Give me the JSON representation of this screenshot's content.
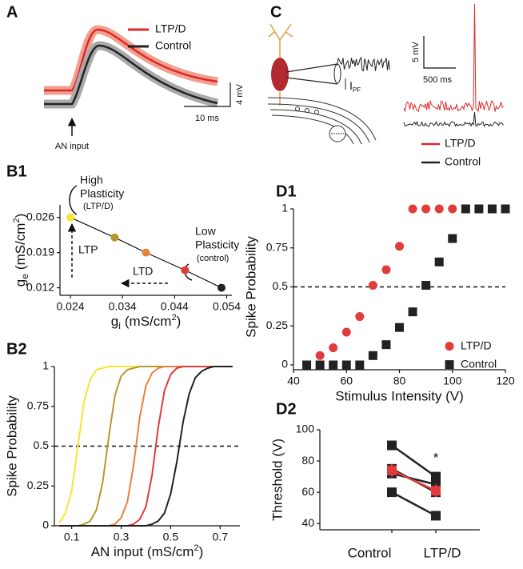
{
  "panel_a": {
    "label": "A",
    "legend": [
      "LTP/D",
      "Control"
    ],
    "scale_y": "4 mV",
    "scale_x": "10 ms",
    "marker": "AN input"
  },
  "panel_c": {
    "label": "C",
    "current_symbol": "I",
    "current_subscript": "PF",
    "scale_y": "5 mV",
    "scale_x": "500 ms",
    "legend": [
      "LTP/D",
      "Control"
    ]
  },
  "chart_data": [
    {
      "panel": "B1",
      "type": "scatter",
      "x": [
        0.024,
        0.0325,
        0.0385,
        0.046,
        0.053
      ],
      "y": [
        0.026,
        0.022,
        0.019,
        0.0155,
        0.012
      ],
      "colors": [
        "#f2e830",
        "#b8962e",
        "#e8823a",
        "#e23b3b",
        "#222222"
      ],
      "connect": true,
      "xlim": [
        0.022,
        0.055
      ],
      "ylim": [
        0.0105,
        0.0285
      ],
      "xticks": [
        0.024,
        0.034,
        0.044,
        0.054
      ],
      "yticks": [
        0.012,
        0.019,
        0.026
      ],
      "xlabel": {
        "symbol": "g",
        "subscript": "i",
        "unit": "(mS/cm",
        "superscript": "2",
        "close": ")"
      },
      "ylabel": {
        "symbol": "g",
        "subscript": "e",
        "unit": "(mS/cm",
        "superscript": "2",
        "close": ")"
      },
      "annotations": {
        "high": [
          "High",
          "Plasticity",
          "(LTP/D)"
        ],
        "low": [
          "Low",
          "Plasticity",
          "(control)"
        ],
        "ltp": "LTP",
        "ltd": "LTD"
      }
    },
    {
      "panel": "B2",
      "type": "line",
      "x": [
        0.05,
        0.075,
        0.1,
        0.125,
        0.15,
        0.175,
        0.2,
        0.225,
        0.25,
        0.275,
        0.3,
        0.325,
        0.35,
        0.375,
        0.4,
        0.425,
        0.45,
        0.475,
        0.5,
        0.525,
        0.55,
        0.575,
        0.6,
        0.625,
        0.65,
        0.675,
        0.7,
        0.725,
        0.75
      ],
      "series": [
        {
          "color": "#f2e830",
          "values": [
            0.02,
            0.08,
            0.22,
            0.5,
            0.78,
            0.92,
            0.98,
            0.99,
            1,
            1,
            1,
            1,
            1,
            1,
            1,
            1,
            1,
            1,
            1,
            1,
            1,
            1,
            1,
            1,
            1,
            1,
            1,
            1,
            1
          ]
        },
        {
          "color": "#b8962e",
          "values": [
            0,
            0,
            0,
            0,
            0.01,
            0.03,
            0.1,
            0.27,
            0.56,
            0.82,
            0.94,
            0.98,
            0.99,
            1,
            1,
            1,
            1,
            1,
            1,
            1,
            1,
            1,
            1,
            1,
            1,
            1,
            1,
            1,
            1
          ]
        },
        {
          "color": "#e8823a",
          "values": [
            0,
            0,
            0,
            0,
            0,
            0,
            0,
            0,
            0,
            0.01,
            0.05,
            0.15,
            0.38,
            0.68,
            0.88,
            0.96,
            0.99,
            1,
            1,
            1,
            1,
            1,
            1,
            1,
            1,
            1,
            1,
            1,
            1
          ]
        },
        {
          "color": "#e23b3b",
          "values": [
            0,
            0,
            0,
            0,
            0,
            0,
            0,
            0,
            0,
            0,
            0,
            0,
            0.01,
            0.04,
            0.12,
            0.32,
            0.62,
            0.85,
            0.95,
            0.99,
            1,
            1,
            1,
            1,
            1,
            1,
            1,
            1,
            1
          ]
        },
        {
          "color": "#222222",
          "values": [
            0,
            0,
            0,
            0,
            0,
            0,
            0,
            0,
            0,
            0,
            0,
            0,
            0,
            0,
            0,
            0.01,
            0.03,
            0.08,
            0.2,
            0.4,
            0.65,
            0.83,
            0.93,
            0.97,
            0.99,
            1,
            1,
            1,
            1
          ]
        }
      ],
      "hline": 0.5,
      "xlim": [
        0.03,
        0.78
      ],
      "ylim": [
        0,
        1
      ],
      "xticks": [
        0.1,
        0.3,
        0.5,
        0.7
      ],
      "yticks": [
        0,
        0.25,
        0.5,
        0.75,
        1
      ],
      "xlabel": {
        "text": "AN input",
        "unit": "(mS/cm",
        "superscript": "2",
        "close": ")"
      },
      "ylabel": "Spike Probability"
    },
    {
      "panel": "D1",
      "type": "scatter",
      "series": [
        {
          "name": "LTP/D",
          "color": "#e23b3b",
          "marker": "circle",
          "x": [
            50,
            55,
            60,
            65,
            70,
            75,
            80,
            85,
            90,
            95,
            100
          ],
          "values": [
            0.06,
            0.11,
            0.21,
            0.31,
            0.51,
            0.61,
            0.76,
            1,
            1,
            1,
            1
          ]
        },
        {
          "name": "Control",
          "color": "#222222",
          "marker": "square",
          "x": [
            45,
            50,
            55,
            60,
            65,
            70,
            75,
            80,
            85,
            90,
            95,
            100,
            105,
            110,
            115,
            120
          ],
          "values": [
            0,
            0,
            0,
            0,
            0,
            0.06,
            0.13,
            0.24,
            0.34,
            0.51,
            0.66,
            0.81,
            1,
            1,
            1,
            1
          ]
        }
      ],
      "hline": 0.5,
      "xlim": [
        40,
        120
      ],
      "ylim": [
        0,
        1
      ],
      "xticks": [
        40,
        60,
        80,
        100,
        120
      ],
      "yticks": [
        0,
        0.25,
        0.5,
        0.75,
        1
      ],
      "xlabel": "Stimulus Intensity (V)",
      "ylabel": "Spike Probability"
    },
    {
      "panel": "D2",
      "type": "paired",
      "categories": [
        "Control",
        "LTP/D"
      ],
      "series": [
        {
          "color": "#222222",
          "values": [
            90,
            70
          ]
        },
        {
          "color": "#222222",
          "values": [
            75,
            60
          ]
        },
        {
          "color": "#222222",
          "values": [
            72,
            65
          ]
        },
        {
          "color": "#222222",
          "values": [
            60,
            45
          ]
        }
      ],
      "mean": {
        "color": "#e23b3b",
        "values": [
          74,
          61
        ],
        "errors": [
          4,
          4
        ]
      },
      "ylim": [
        36,
        100
      ],
      "yticks": [
        40,
        60,
        80,
        100
      ],
      "ylabel": "Threshold (V)",
      "annotation": "*"
    }
  ]
}
